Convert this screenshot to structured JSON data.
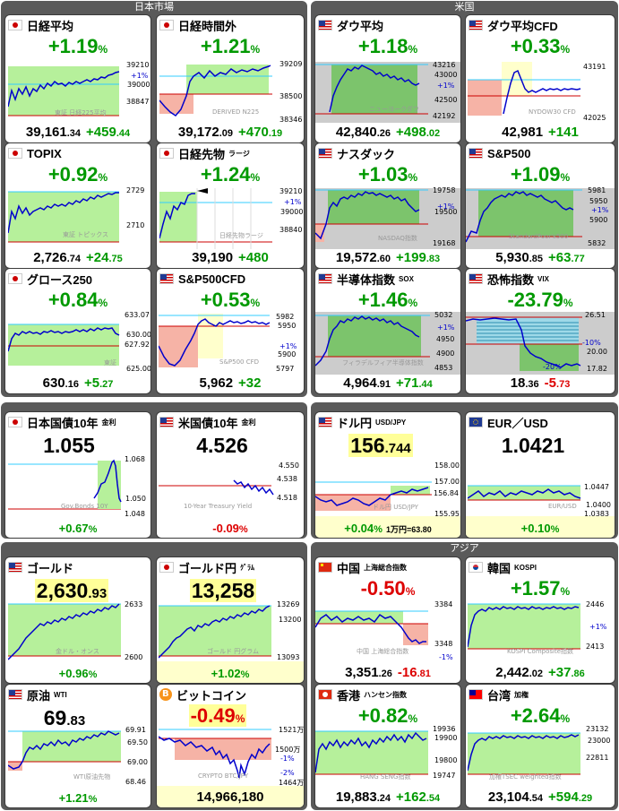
{
  "panels": {
    "japan": "日本市場",
    "us": "米国",
    "asia": "アジア"
  },
  "colors": {
    "up": "#009900",
    "down": "#dd0000",
    "positive_fill": "#b6f09b",
    "negative_fill": "#f6b3a6",
    "chart_line": "#0000cc"
  },
  "cards": {
    "nikkei": {
      "name": "日経平均",
      "flag": "jp-flag",
      "pct": "+1.19",
      "pct_unit": "%",
      "price_int": "39,161",
      "price_dec": ".34",
      "change_int": "+459",
      "change_dec": ".44",
      "high": "39210",
      "mid_a": "+1%",
      "mid_b": "39000",
      "low": "38847",
      "watermark": "東証 日経225平均"
    },
    "nikkei_after": {
      "name": "日経時間外",
      "flag": "jp-flag",
      "pct": "+1.21",
      "pct_unit": "%",
      "price_int": "39,172",
      "price_dec": ".09",
      "change_int": "+470",
      "change_dec": ".19",
      "high": "39209",
      "mid_b": "38500",
      "low": "38346",
      "watermark": "DERIVED N225"
    },
    "dow": {
      "name": "ダウ平均",
      "flag": "us-flag",
      "pct": "+1.18",
      "pct_unit": "%",
      "price_int": "42,840",
      "price_dec": ".26",
      "change_int": "+498",
      "change_dec": ".02",
      "high": "43216",
      "mid_a": "+1%",
      "mid_b": "43000",
      "mid_c": "42500",
      "low": "42192",
      "watermark": "ニューヨークダウ"
    },
    "dow_cfd": {
      "name": "ダウ平均CFD",
      "flag": "us-flag",
      "pct": "+0.33",
      "pct_unit": "%",
      "price_int": "42,981",
      "price_dec": "",
      "change_int": "+141",
      "change_dec": "",
      "high": "43191",
      "low": "42025",
      "watermark": "NYDOW30 CFD"
    },
    "topix": {
      "name": "TOPIX",
      "flag": "jp-flag",
      "pct": "+0.92",
      "pct_unit": "%",
      "price_int": "2,726",
      "price_dec": ".74",
      "change_int": "+24",
      "change_dec": ".75",
      "high": "2729",
      "low": "2710",
      "watermark": "東証 トピックス"
    },
    "nikkei_fut": {
      "name": "日経先物",
      "sub": "ラージ",
      "flag": "jp-flag",
      "pct": "+1.24",
      "pct_unit": "%",
      "price_int": "39,190",
      "price_dec": "",
      "change_int": "+480",
      "change_dec": "",
      "high": "39210",
      "mid_a": "+1%",
      "mid_b": "39000",
      "low": "38840",
      "watermark": "日経先物ラージ"
    },
    "nasdaq": {
      "name": "ナスダック",
      "flag": "us-flag",
      "pct": "+1.03",
      "pct_unit": "%",
      "price_int": "19,572",
      "price_dec": ".60",
      "change_int": "+199",
      "change_dec": ".83",
      "high": "19758",
      "mid_a": "+1%",
      "mid_b": "19500",
      "low": "19168",
      "watermark": "NASDAQ指数"
    },
    "sp500": {
      "name": "S&P500",
      "flag": "us-flag",
      "pct": "+1.09",
      "pct_unit": "%",
      "price_int": "5,930",
      "price_dec": ".85",
      "change_int": "+63",
      "change_dec": ".77",
      "high": "5981",
      "mid_a": "5950",
      "mid_b": "+1%",
      "mid_c": "5900",
      "low": "5832",
      "watermark": "StandardPoor's500"
    },
    "growth": {
      "name": "グロース250",
      "flag": "jp-flag",
      "pct": "+0.84",
      "pct_unit": "%",
      "price_int": "630",
      "price_dec": ".16",
      "change_int": "+5",
      "change_dec": ".27",
      "high": "633.07",
      "mid_a": "630.00",
      "mid_b": "627.92",
      "low": "625.00",
      "watermark": "東証"
    },
    "sp500_cfd": {
      "name": "S&P500CFD",
      "flag": "us-flag",
      "pct": "+0.53",
      "pct_unit": "%",
      "price_int": "5,962",
      "price_dec": "",
      "change_int": "+32",
      "change_dec": "",
      "high": "5982",
      "mid_a": "5950",
      "mid_b": "+1%",
      "mid_c": "5900",
      "low": "5797",
      "watermark": "S&P500 CFD"
    },
    "semi": {
      "name": "半導体指数",
      "sub": "SOX",
      "flag": "us-flag",
      "pct": "+1.46",
      "pct_unit": "%",
      "price_int": "4,964",
      "price_dec": ".91",
      "change_int": "+71",
      "change_dec": ".44",
      "high": "5032",
      "mid_a": "+1%",
      "mid_b": "4950",
      "mid_c": "4900",
      "low": "4853",
      "watermark": "フィラデルフィア半導体指数"
    },
    "vix": {
      "name": "恐怖指数",
      "sub": "VIX",
      "flag": "us-flag",
      "pct": "-23.79",
      "pct_unit": "%",
      "price_int": "18",
      "price_dec": ".36",
      "change_int": "-5",
      "change_dec": ".73",
      "high": "26.51",
      "mid_a": "-10%",
      "mid_b": "20.00",
      "mid_c": "-20%",
      "low": "17.82"
    },
    "jgb10": {
      "name": "日本国債10年",
      "sub": "金利",
      "flag": "jp-flag",
      "value": "1.055",
      "high": "1.068",
      "mid": "1.050",
      "low": "1.048",
      "change": "+0.67",
      "change_unit": "%",
      "watermark": "Gov.Bonds 10Y"
    },
    "ust10": {
      "name": "米国債10年",
      "sub": "金利",
      "flag": "us-flag",
      "value": "4.526",
      "high": "4.550",
      "mid": "4.538",
      "low": "4.518",
      "change": "-0.09",
      "change_unit": "%",
      "watermark": "10-Year Treasury Yield"
    },
    "usdjpy": {
      "name": "ドル円",
      "sub": "USD/JPY",
      "flag": "us-flag",
      "value_int": "156",
      "value_dec": ".744",
      "high": "158.00",
      "mid_a": "156.84",
      "mid_b": "157.00",
      "low": "155.95",
      "change": "+0.04",
      "change_unit": "%",
      "note": "1万円=63.80",
      "watermark": "ドル円 USD/JPY"
    },
    "eurusd": {
      "name": "EUR／USD",
      "flag": "eu-flag",
      "value": "1.0421",
      "high": "1.0447",
      "mid": "1.0400",
      "low": "1.0383",
      "change": "+0.10",
      "change_unit": "%",
      "watermark": "EUR/USD"
    },
    "gold": {
      "name": "ゴールド",
      "flag": "us-flag",
      "value_int": "2,630",
      "value_dec": ".93",
      "high": "2633",
      "low": "2600",
      "change": "+0.96",
      "change_unit": "%",
      "watermark": "金ドル・オンス"
    },
    "gold_jpy": {
      "name": "ゴールド円",
      "sub": "ｸﾞﾗﾑ",
      "flag": "jp-flag",
      "value": "13,258",
      "high": "13269",
      "mid": "13200",
      "low": "13093",
      "change": "+1.02",
      "change_unit": "%",
      "watermark": "ゴールド 円グラム"
    },
    "china": {
      "name": "中国",
      "sub": "上海総合指数",
      "flag": "cn-flag",
      "pct": "-0.50",
      "pct_unit": "%",
      "price_int": "3,351",
      "price_dec": ".26",
      "change_int": "-16",
      "change_dec": ".81",
      "high": "3384",
      "low": "3348",
      "mid_a": "-1%",
      "watermark": "中国 上海総合指数"
    },
    "korea": {
      "name": "韓国",
      "sub": "KOSPI",
      "flag": "kr-flag",
      "pct": "+1.57",
      "pct_unit": "%",
      "price_int": "2,442",
      "price_dec": ".02",
      "change_int": "+37",
      "change_dec": ".86",
      "high": "2446",
      "mid_a": "+1%",
      "low": "2413",
      "watermark": "KOSPI Composite指数"
    },
    "oil": {
      "name": "原油",
      "sub": "WTI",
      "flag": "us-flag",
      "value_int": "69",
      "value_dec": ".83",
      "high": "69.91",
      "mid_a": "69.50",
      "mid_b": "69.00",
      "low": "68.46",
      "change": "+1.21",
      "change_unit": "%",
      "watermark": "WTI原油先物"
    },
    "bitcoin": {
      "name": "ビットコイン",
      "flag": "btc-flag",
      "pct": "-0.49",
      "pct_unit": "%",
      "value": "14,966,180",
      "high": "1521万",
      "mid_a": "1500万",
      "mid_b": "-1%",
      "mid_c": "-2%",
      "low": "1464万",
      "watermark": "CRYPTO BTC/JPY"
    },
    "hongkong": {
      "name": "香港",
      "sub": "ハンセン指数",
      "flag": "hk-flag",
      "pct": "+0.82",
      "pct_unit": "%",
      "price_int": "19,883",
      "price_dec": ".24",
      "change_int": "+162",
      "change_dec": ".54",
      "high": "19936",
      "mid_a": "19900",
      "mid_b": "19800",
      "low": "19747",
      "watermark": "HANG SENG指数"
    },
    "taiwan": {
      "name": "台湾",
      "sub": "加権",
      "flag": "tw-flag",
      "pct": "+2.64",
      "pct_unit": "%",
      "price_int": "23,104",
      "price_dec": ".54",
      "change_int": "+594",
      "change_dec": ".29",
      "high": "23132",
      "mid_a": "23000",
      "low": "22811",
      "watermark": "加権TSEC weighted指数"
    }
  }
}
